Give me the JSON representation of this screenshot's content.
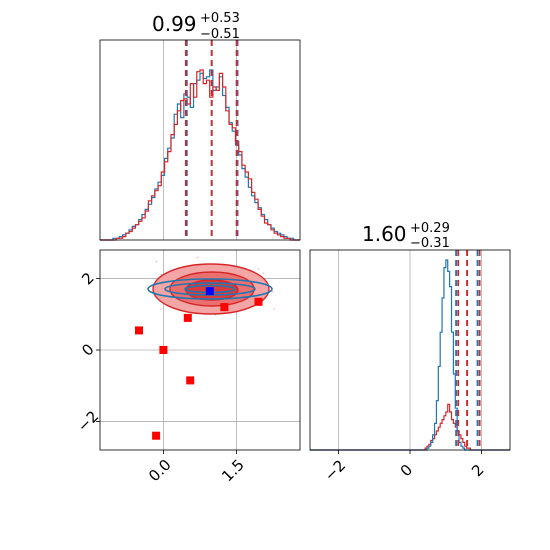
{
  "chart_data": {
    "type": "corner",
    "colors": {
      "blue": "#1f77b4",
      "red": "#d62728",
      "red_marker": "#ff0000",
      "blue_marker": "#0000ff",
      "grid": "#b0b0b0"
    },
    "params": [
      {
        "median": "0.99",
        "plus": "+0.53",
        "minus": "−0.51",
        "xlim": [
          -1.3,
          2.8
        ],
        "ticks": [
          0.0,
          1.5
        ],
        "tick_labels": [
          "0.0",
          "1.5"
        ],
        "quantiles_blue": [
          0.48,
          0.99,
          1.52
        ],
        "quantiles_red": [
          0.46,
          0.99,
          1.5
        ]
      },
      {
        "median": "1.60",
        "plus": "+0.29",
        "minus": "−0.31",
        "xlim": [
          -2.8,
          2.8
        ],
        "ticks": [
          -2,
          0,
          2
        ],
        "tick_labels": [
          "−2",
          "0",
          "2"
        ],
        "quantiles_blue": [
          1.29,
          1.6,
          1.89
        ],
        "quantiles_red": [
          1.35,
          1.6,
          1.95
        ]
      }
    ],
    "hist1d": {
      "x_min": -1.3,
      "x_max": 2.8,
      "blue": [
        0,
        0,
        0,
        0,
        1,
        1,
        2,
        3,
        4,
        6,
        8,
        9,
        12,
        15,
        18,
        21,
        25,
        30,
        34,
        38,
        48,
        54,
        60,
        74,
        80,
        72,
        86,
        84,
        78,
        92,
        94,
        98,
        95,
        96,
        100,
        88,
        90,
        96,
        85,
        78,
        69,
        64,
        56,
        50,
        42,
        37,
        31,
        26,
        22,
        19,
        15,
        12,
        9,
        7,
        5,
        4,
        3,
        2,
        1,
        1,
        0,
        0
      ],
      "red": [
        0,
        0,
        0,
        0,
        0,
        1,
        1,
        2,
        4,
        5,
        7,
        9,
        11,
        13,
        17,
        23,
        26,
        29,
        32,
        40,
        46,
        52,
        62,
        68,
        76,
        82,
        83,
        80,
        92,
        84,
        99,
        100,
        92,
        94,
        84,
        90,
        88,
        98,
        90,
        76,
        68,
        66,
        58,
        52,
        44,
        40,
        36,
        28,
        24,
        18,
        14,
        10,
        9,
        6,
        4,
        3,
        2,
        1,
        1,
        0,
        0,
        0
      ]
    },
    "hist2": {
      "x_min": -2.8,
      "x_max": 2.8,
      "blue": [
        0,
        0,
        0,
        0,
        0,
        0,
        0,
        0,
        0,
        0,
        0,
        0,
        0,
        0,
        0,
        0,
        0,
        0,
        0,
        0,
        0,
        0,
        0,
        0,
        0,
        0,
        0,
        0,
        0,
        0,
        0,
        0,
        0,
        0,
        0,
        0,
        0,
        0,
        0,
        0,
        0,
        0,
        0,
        0,
        0,
        0,
        0,
        0,
        0,
        0,
        0,
        0,
        0,
        0,
        0,
        0,
        0,
        0,
        0,
        0,
        0,
        0,
        1,
        2,
        4,
        8,
        14,
        26,
        44,
        62,
        80,
        96,
        100,
        94,
        86,
        62,
        40,
        22,
        10,
        4,
        2,
        1,
        0,
        0,
        0,
        0,
        0,
        0,
        0,
        0,
        0,
        0,
        0,
        0,
        0,
        0,
        0,
        0,
        0,
        0,
        0,
        0,
        0,
        0,
        0,
        0
      ],
      "red": [
        0,
        0,
        0,
        0,
        0,
        0,
        0,
        0,
        0,
        0,
        0,
        0,
        0,
        0,
        0,
        0,
        0,
        0,
        0,
        0,
        0,
        0,
        0,
        0,
        0,
        0,
        0,
        0,
        0,
        0,
        0,
        0,
        0,
        0,
        0,
        0,
        0,
        0,
        0,
        0,
        0,
        0,
        0,
        0,
        0,
        0,
        0,
        0,
        0,
        0,
        0,
        0,
        0,
        0,
        0,
        0,
        0,
        0,
        0,
        0,
        0,
        1,
        2,
        3,
        5,
        6,
        8,
        10,
        12,
        14,
        16,
        18,
        20,
        24,
        20,
        16,
        14,
        12,
        10,
        8,
        6,
        4,
        2,
        1,
        1,
        0,
        0,
        0,
        0,
        0,
        0,
        0,
        0,
        0,
        0,
        0,
        0,
        0,
        0,
        0,
        0,
        0,
        0,
        0,
        0,
        0
      ]
    },
    "scatter_panel": {
      "xlim": [
        -1.3,
        2.8
      ],
      "ylim": [
        -2.8,
        2.8
      ],
      "yticks": [
        -2,
        0,
        2
      ],
      "ytick_labels": [
        "−2",
        "0",
        "2"
      ],
      "red_points": [
        [
          -0.5,
          0.55
        ],
        [
          0.0,
          0.0
        ],
        [
          0.5,
          0.9
        ],
        [
          1.25,
          1.2
        ],
        [
          1.95,
          1.35
        ],
        [
          0.55,
          -0.85
        ],
        [
          -0.15,
          -2.4
        ]
      ],
      "blue_point": [
        0.95,
        1.65
      ]
    }
  }
}
